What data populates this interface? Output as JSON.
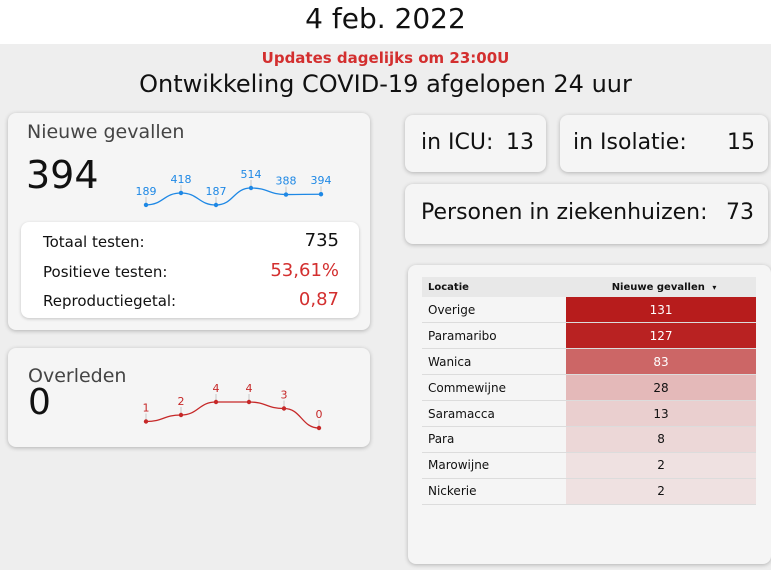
{
  "header": {
    "date": "4 feb. 2022"
  },
  "banner": {
    "updates": "Updates dagelijks om 23:00U",
    "title": "Ontwikkeling COVID-19 afgelopen 24 uur"
  },
  "new_cases": {
    "label": "Nieuwe gevallen",
    "value": "394",
    "trend": [
      189,
      418,
      187,
      514,
      388,
      394
    ],
    "trend_labels": [
      "189",
      "418",
      "187",
      "514",
      "388",
      "394"
    ],
    "color": "#1e88e5"
  },
  "stats": [
    {
      "label": "Totaal testen:",
      "value": "735",
      "color": "#111111"
    },
    {
      "label": "Positieve testen:",
      "value": "53,61%",
      "color": "#d32f2f"
    },
    {
      "label": "Reproductiegetal:",
      "value": "0,87",
      "color": "#d32f2f"
    }
  ],
  "deaths": {
    "label": "Overleden",
    "value": "0",
    "trend": [
      1,
      2,
      4,
      4,
      3,
      0
    ],
    "trend_labels": [
      "1",
      "2",
      "4",
      "4",
      "3",
      "0"
    ],
    "color": "#c62828"
  },
  "icu": {
    "label": "in ICU:",
    "value": "13"
  },
  "isolation": {
    "label": "in Isolatie:",
    "value": "15"
  },
  "hospital": {
    "label": "Personen in ziekenhuizen:",
    "value": "73"
  },
  "table": {
    "col_location": "Locatie",
    "col_cases": "Nieuwe gevallen",
    "sort_indicator": "▾",
    "rows": [
      {
        "location": "Overige",
        "cases": "131",
        "n": 131
      },
      {
        "location": "Paramaribo",
        "cases": "127",
        "n": 127
      },
      {
        "location": "Wanica",
        "cases": "83",
        "n": 83
      },
      {
        "location": "Commewijne",
        "cases": "28",
        "n": 28
      },
      {
        "location": "Saramacca",
        "cases": "13",
        "n": 13
      },
      {
        "location": "Para",
        "cases": "8",
        "n": 8
      },
      {
        "location": "Marowijne",
        "cases": "2",
        "n": 2
      },
      {
        "location": "Nickerie",
        "cases": "2",
        "n": 2
      }
    ],
    "heat_color": "#b71c1c"
  }
}
